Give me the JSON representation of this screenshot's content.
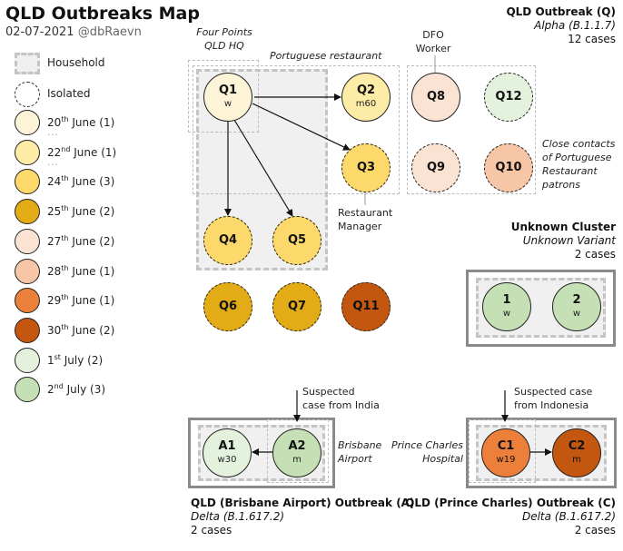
{
  "title": "QLD Outbreaks Map",
  "date": "02-07-2021",
  "author": "@dbRaevn",
  "legend": {
    "household": "Household",
    "isolated": "Isolated",
    "dates": [
      {
        "pre": "20",
        "sup": "th",
        "post": " June (1)",
        "color": "#fdf4d7"
      },
      {
        "pre": "22",
        "sup": "nd",
        "post": " June (1)",
        "color": "#fdeca6"
      },
      {
        "pre": "24",
        "sup": "th",
        "post": " June (3)",
        "color": "#fdd96b"
      },
      {
        "pre": "25",
        "sup": "th",
        "post": " June (2)",
        "color": "#e3ac16"
      },
      {
        "pre": "27",
        "sup": "th",
        "post": " June (2)",
        "color": "#fbe3d4"
      },
      {
        "pre": "28",
        "sup": "th",
        "post": " June (1)",
        "color": "#f6c6a6"
      },
      {
        "pre": "29",
        "sup": "th",
        "post": " June (1)",
        "color": "#ec7f3a"
      },
      {
        "pre": "30",
        "sup": "th",
        "post": " June (2)",
        "color": "#c3570f"
      },
      {
        "pre": "1",
        "sup": "st",
        "post": " July (2)",
        "color": "#e4f1dc"
      },
      {
        "pre": "2",
        "sup": "nd",
        "post": " July (3)",
        "color": "#c6e0b5"
      }
    ],
    "ellipsis": "..."
  },
  "q_outbreak": {
    "name": "QLD Outbreak (Q)",
    "variant": "Alpha (B.1.1.7)",
    "count": "12 cases"
  },
  "unknown_cluster": {
    "name": "Unknown Cluster",
    "variant": "Unknown Variant",
    "count": "2 cases"
  },
  "a_outbreak": {
    "name": "QLD (Brisbane Airport) Outbreak (A)",
    "variant": "Delta (B.1.617.2)",
    "count": "2 cases"
  },
  "c_outbreak": {
    "name": "QLD (Prince Charles) Outbreak (C)",
    "variant": "Delta (B.1.617.2)",
    "count": "2 cases"
  },
  "notes": {
    "four_points_1": "Four Points",
    "four_points_2": "QLD HQ",
    "portuguese": "Portuguese restaurant",
    "dfo_1": "DFO",
    "dfo_2": "Worker",
    "close_1": "Close contacts",
    "close_2": "of Portuguese",
    "close_3": "Restaurant",
    "close_4": "patrons",
    "manager_1": "Restaurant",
    "manager_2": "Manager",
    "india_1": "Suspected",
    "india_2": "case from India",
    "airport_1": "Brisbane",
    "airport_2": "Airport",
    "indonesia_1": "Suspected case",
    "indonesia_2": "from Indonesia",
    "pch_1": "Prince Charles",
    "pch_2": "Hospital"
  },
  "nodes": {
    "Q1": {
      "name": "Q1",
      "sub": "w",
      "color": "#fdf4d7"
    },
    "Q2": {
      "name": "Q2",
      "sub": "m60",
      "color": "#fdeca6"
    },
    "Q3": {
      "name": "Q3",
      "sub": "",
      "color": "#fdd96b"
    },
    "Q4": {
      "name": "Q4",
      "sub": "",
      "color": "#fdd96b"
    },
    "Q5": {
      "name": "Q5",
      "sub": "",
      "color": "#fdd96b"
    },
    "Q6": {
      "name": "Q6",
      "sub": "",
      "color": "#e3ac16"
    },
    "Q7": {
      "name": "Q7",
      "sub": "",
      "color": "#e3ac16"
    },
    "Q8": {
      "name": "Q8",
      "sub": "",
      "color": "#fbe3d4"
    },
    "Q9": {
      "name": "Q9",
      "sub": "",
      "color": "#fbe3d4"
    },
    "Q10": {
      "name": "Q10",
      "sub": "",
      "color": "#f6c6a6"
    },
    "Q11": {
      "name": "Q11",
      "sub": "",
      "color": "#c3570f"
    },
    "Q12": {
      "name": "Q12",
      "sub": "",
      "color": "#e4f1dc"
    },
    "U1": {
      "name": "1",
      "sub": "w",
      "color": "#c6e0b5"
    },
    "U2": {
      "name": "2",
      "sub": "w",
      "color": "#c6e0b5"
    },
    "A1": {
      "name": "A1",
      "sub": "w30",
      "color": "#e4f1dc"
    },
    "A2": {
      "name": "A2",
      "sub": "m",
      "color": "#c6e0b5"
    },
    "C1": {
      "name": "C1",
      "sub": "w19",
      "color": "#ec7f3a"
    },
    "C2": {
      "name": "C2",
      "sub": "m",
      "color": "#c3570f"
    }
  }
}
